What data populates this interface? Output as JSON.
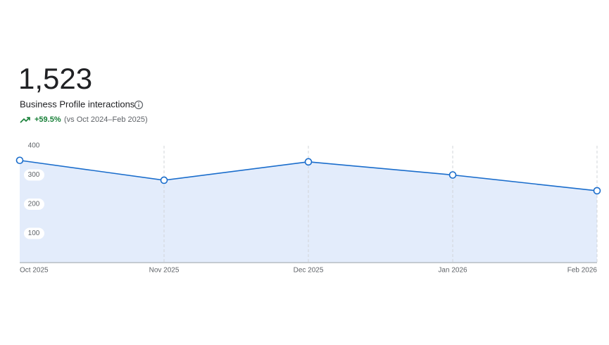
{
  "summary": {
    "total": "1,523",
    "label": "Business Profile interactions",
    "change": "+59.5%",
    "comparison": "(vs Oct 2024–Feb 2025)"
  },
  "chart_data": {
    "type": "area",
    "categories": [
      "Oct 2025",
      "Nov 2025",
      "Dec 2025",
      "Jan 2026",
      "Feb 2026"
    ],
    "values": [
      350,
      282,
      345,
      300,
      246
    ],
    "color": "#1a6dcc",
    "fill": "#e3ecfb",
    "ylim": [
      0,
      400
    ],
    "yticks": [
      100,
      200,
      300,
      400
    ],
    "grid": true
  }
}
